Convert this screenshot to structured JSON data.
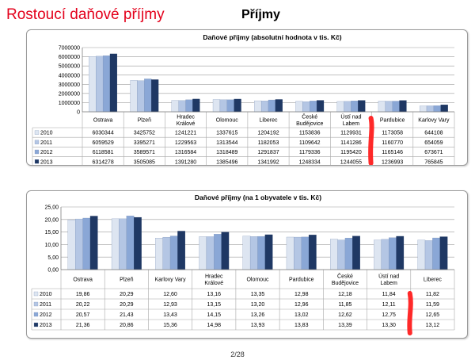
{
  "page": {
    "title": "Rostoucí daňové příjmy",
    "heading": "Příjmy",
    "page_number": "2/28"
  },
  "chart_data": [
    {
      "type": "bar",
      "title": "Daňové příjmy (absolutní hodnota v tis. Kč)",
      "categories": [
        "Ostrava",
        "Plzeň",
        "Hradec Králové",
        "Olomouc",
        "Liberec",
        "České Budějovice",
        "Ústí nad Labem",
        "Pardubice",
        "Karlovy Vary"
      ],
      "category_lines": [
        [
          "Ostrava"
        ],
        [
          "Plzeň"
        ],
        [
          "Hradec",
          "Králové"
        ],
        [
          "Olomouc"
        ],
        [
          "Liberec"
        ],
        [
          "České",
          "Budějovice"
        ],
        [
          "Ústí nad",
          "Labem"
        ],
        [
          "Pardubice"
        ],
        [
          "Karlovy Vary"
        ]
      ],
      "ylim": [
        0,
        7000000
      ],
      "yticks": [
        "0",
        "1000000",
        "2000000",
        "3000000",
        "4000000",
        "5000000",
        "6000000",
        "7000000"
      ],
      "grid": true,
      "legend": "table",
      "series": [
        {
          "name": "2010",
          "values": [
            6030344,
            3425752,
            1241221,
            1337615,
            1204192,
            1153836,
            1129931,
            1173058,
            644108
          ],
          "labels": [
            "6030344",
            "3425752",
            "1241221",
            "1337615",
            "1204192",
            "1153836",
            "1129931",
            "1173058",
            "644108"
          ]
        },
        {
          "name": "2011",
          "values": [
            6059529,
            3395271,
            1229563,
            1313544,
            1182053,
            1109642,
            1141286,
            1160770,
            654059
          ],
          "labels": [
            "6059529",
            "3395271",
            "1229563",
            "1313544",
            "1182053",
            "1109642",
            "1141286",
            "1160770",
            "654059"
          ]
        },
        {
          "name": "2012",
          "values": [
            6118581,
            3589571,
            1316584,
            1318489,
            1291837,
            1179336,
            1195420,
            1165146,
            673671
          ],
          "labels": [
            "6118581",
            "3589571",
            "1316584",
            "1318489",
            "1291837",
            "1179336",
            "1195420",
            "1165146",
            "673671"
          ]
        },
        {
          "name": "2013",
          "values": [
            6314278,
            3505085,
            1391280,
            1385496,
            1341992,
            1248334,
            1244055,
            1236993,
            765845
          ],
          "labels": [
            "6314278",
            "3505085",
            "1391280",
            "1385496",
            "1341992",
            "1248334",
            "1244055",
            "1236993",
            "765845"
          ]
        }
      ]
    },
    {
      "type": "bar",
      "title": "Daňové příjmy (na 1 obyvatele v tis. Kč)",
      "categories": [
        "Ostrava",
        "Plzeň",
        "Karlovy Vary",
        "Hradec Králové",
        "Olomouc",
        "Pardubice",
        "České Budějovice",
        "Ústí nad Labem",
        "Liberec"
      ],
      "category_lines": [
        [
          "Ostrava"
        ],
        [
          "Plzeň"
        ],
        [
          "Karlovy Vary"
        ],
        [
          "Hradec",
          "Králové"
        ],
        [
          "Olomouc"
        ],
        [
          "Pardubice"
        ],
        [
          "České",
          "Budějovice"
        ],
        [
          "Ústí nad",
          "Labem"
        ],
        [
          "Liberec"
        ]
      ],
      "ylim": [
        0,
        25
      ],
      "yticks": [
        "0,00",
        "5,00",
        "10,00",
        "15,00",
        "20,00",
        "25,00"
      ],
      "grid": true,
      "legend": "table",
      "series": [
        {
          "name": "2010",
          "values": [
            19.86,
            20.29,
            12.6,
            13.16,
            13.35,
            12.98,
            12.18,
            11.84,
            11.82
          ],
          "labels": [
            "19,86",
            "20,29",
            "12,60",
            "13,16",
            "13,35",
            "12,98",
            "12,18",
            "11,84",
            "11,82"
          ]
        },
        {
          "name": "2011",
          "values": [
            20.22,
            20.29,
            12.93,
            13.15,
            13.2,
            12.96,
            11.85,
            12.11,
            11.59
          ],
          "labels": [
            "20,22",
            "20,29",
            "12,93",
            "13,15",
            "13,20",
            "12,96",
            "11,85",
            "12,11",
            "11,59"
          ]
        },
        {
          "name": "2012",
          "values": [
            20.57,
            21.43,
            13.43,
            14.15,
            13.26,
            13.02,
            12.62,
            12.75,
            12.65
          ],
          "labels": [
            "20,57",
            "21,43",
            "13,43",
            "14,15",
            "13,26",
            "13,02",
            "12,62",
            "12,75",
            "12,65"
          ]
        },
        {
          "name": "2013",
          "values": [
            21.36,
            20.86,
            15.36,
            14.98,
            13.93,
            13.83,
            13.39,
            13.3,
            13.12
          ],
          "labels": [
            "21,36",
            "20,86",
            "15,36",
            "14,98",
            "13,93",
            "13,83",
            "13,39",
            "13,30",
            "13,12"
          ]
        }
      ]
    }
  ],
  "style": {
    "series_colors": [
      "#dde5f1",
      "#b4c6e4",
      "#8aa7d6",
      "#1f3864"
    ],
    "highlight_color": "#ff1f1f"
  }
}
